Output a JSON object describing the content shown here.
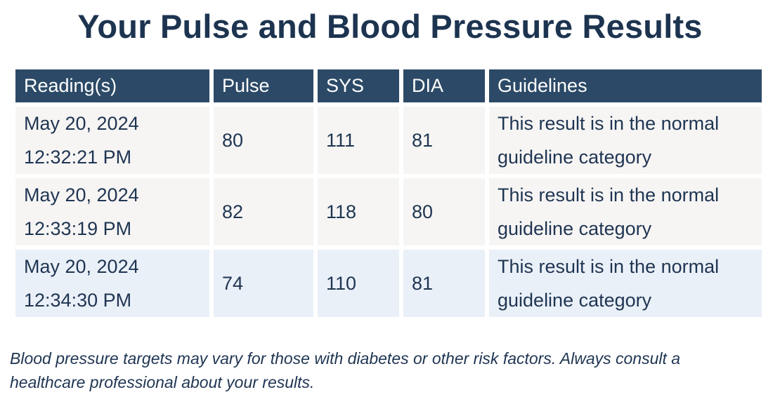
{
  "page": {
    "title": "Your Pulse and Blood Pressure Results"
  },
  "table": {
    "headers": {
      "reading": "Reading(s)",
      "pulse": "Pulse",
      "sys": "SYS",
      "dia": "DIA",
      "guidelines": "Guidelines"
    },
    "rows": [
      {
        "date": "May 20, 2024",
        "time": "12:32:21 PM",
        "pulse": "80",
        "sys": "111",
        "dia": "81",
        "guideline_line1": "This result is in the normal",
        "guideline_line2": "guideline category"
      },
      {
        "date": "May 20, 2024",
        "time": "12:33:19 PM",
        "pulse": "82",
        "sys": "118",
        "dia": "80",
        "guideline_line1": "This result is in the normal",
        "guideline_line2": "guideline category"
      },
      {
        "date": "May 20, 2024",
        "time": "12:34:30 PM",
        "pulse": "74",
        "sys": "110",
        "dia": "81",
        "guideline_line1": "This result is in the normal",
        "guideline_line2": "guideline category"
      }
    ]
  },
  "footnote": {
    "line1": "Blood pressure targets may vary for those with diabetes or other risk factors. Always consult a",
    "line2": "healthcare professional about your results."
  },
  "colors": {
    "header_bg": "#2c4a67",
    "title": "#1d3450",
    "row_bg": "#f6f5f4",
    "row_bg_highlight": "#eaf0f8"
  }
}
